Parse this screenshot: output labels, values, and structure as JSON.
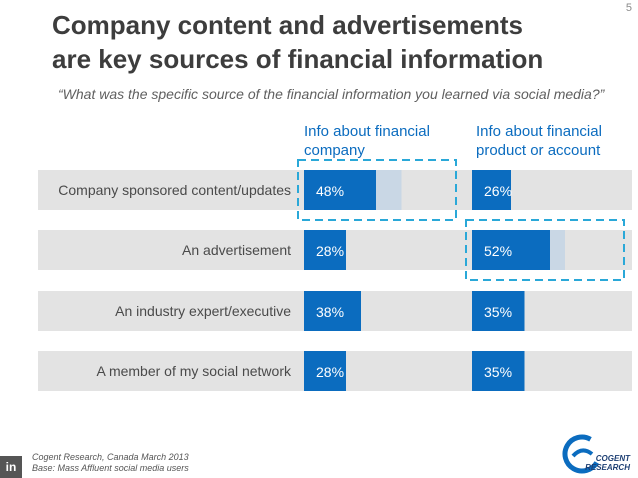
{
  "page_number": "5",
  "title_line1": "Company content and advertisements",
  "title_line2": "are key sources of financial information",
  "subtitle": "“What was the specific source of the financial information you learned via social media?”",
  "column_headers": {
    "col1_line1": "Info about financial",
    "col1_line2": "company",
    "col2_line1": "Info about financial",
    "col2_line2": "product or account"
  },
  "footnote": {
    "source": "Cogent Research, Canada March 2013",
    "base": "Base: Mass Affluent social media users"
  },
  "linkedin_icon_text": "in",
  "logo": {
    "text_line1": "COGENT",
    "text_line2": "RESEARCH"
  },
  "colors": {
    "bar": "#0b6cbf",
    "row_bg": "#e3e3e3",
    "highlight_fill": "#c9d7e5",
    "highlight_border": "#2aa8d8",
    "header": "#0b6cbf"
  },
  "chart_data": {
    "type": "bar",
    "categories": [
      "Company sponsored content/updates",
      "An advertisement",
      "An industry expert/executive",
      "A member of my social network"
    ],
    "series": [
      {
        "name": "Info about financial company",
        "values": [
          48,
          28,
          38,
          28
        ],
        "labels": [
          "48%",
          "28%",
          "38%",
          "28%"
        ]
      },
      {
        "name": "Info about financial product or account",
        "values": [
          26,
          52,
          35,
          35
        ],
        "labels": [
          "26%",
          "52%",
          "35%",
          "35%"
        ]
      }
    ],
    "xlim": [
      0,
      100
    ],
    "highlighted": [
      {
        "series": 0,
        "category": 0,
        "shaded_value": 65
      },
      {
        "series": 1,
        "category": 1,
        "shaded_value": 62
      }
    ]
  }
}
